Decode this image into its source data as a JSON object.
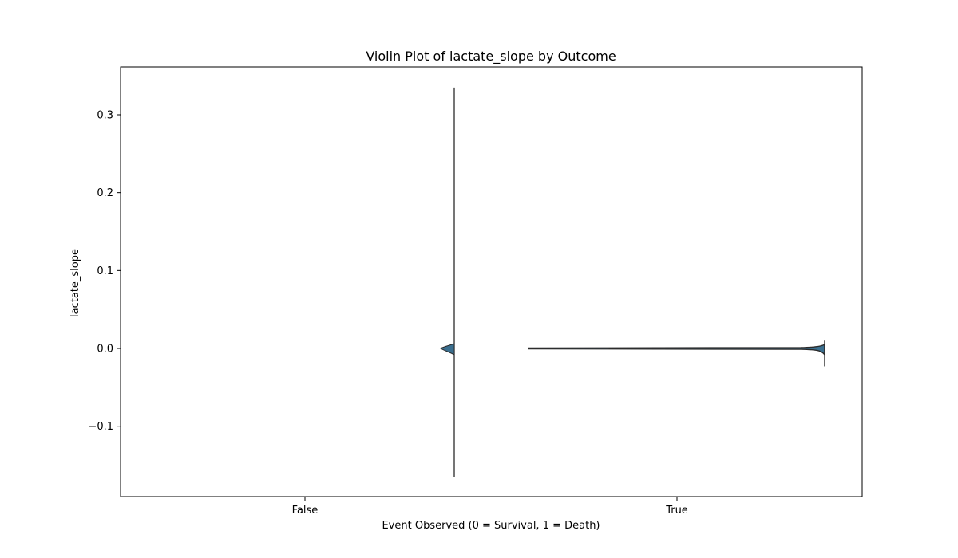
{
  "chart_data": {
    "type": "violin",
    "title": "Violin Plot of lactate_slope by Outcome",
    "xlabel": "Event Observed (0 = Survival, 1 = Death)",
    "ylabel": "lactate_slope",
    "categories": [
      "False",
      "True"
    ],
    "ylim": [
      -0.19,
      0.36
    ],
    "yticks": [
      {
        "value": 0.3,
        "label": "0.3"
      },
      {
        "value": 0.2,
        "label": "0.2"
      },
      {
        "value": 0.1,
        "label": "0.1"
      },
      {
        "value": 0.0,
        "label": "0.0"
      },
      {
        "value": -0.1,
        "label": "−0.1"
      }
    ],
    "grid": false,
    "colors": {
      "violin_fill": "#3a6f8f",
      "violin_edge": "#2b2b2b"
    },
    "series": [
      {
        "category": "False",
        "min": -0.165,
        "max": 0.335,
        "density_peak": 0.0,
        "density_spread": [
          -0.008,
          0.006
        ]
      },
      {
        "category": "True",
        "min": -0.023,
        "max": 0.01,
        "density_peak": 0.0,
        "density_spread": [
          -0.002,
          0.001
        ]
      }
    ]
  }
}
